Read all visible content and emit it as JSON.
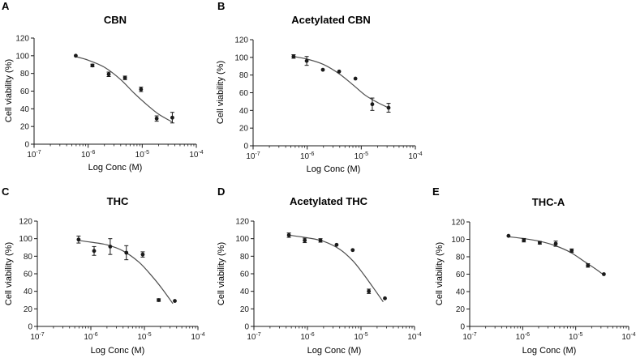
{
  "figure": {
    "colors": {
      "axis": "#1a1a1a",
      "curve": "#4d4d4d",
      "points": "#1a1a1a",
      "text": "#1a1a1a"
    }
  },
  "chart_data": [
    {
      "panel_label": "A",
      "title": "CBN",
      "type": "scatter",
      "xlabel": "Log Conc (M)",
      "ylabel": "Cell viability (%)",
      "xscale": "log",
      "xlim": [
        1e-07,
        0.0001
      ],
      "ylim": [
        0,
        120
      ],
      "x_ticklabels": [
        "10-7",
        "10-6",
        "10-5",
        "10-4"
      ],
      "y_ticklabels": [
        "0",
        "20",
        "40",
        "60",
        "80",
        "100",
        "120"
      ],
      "grid": false,
      "legend": "none",
      "points": [
        {
          "x": 5.9e-07,
          "y": 100,
          "err": 0
        },
        {
          "x": 1.2e-06,
          "y": 89,
          "err": 1.5
        },
        {
          "x": 2.4e-06,
          "y": 79,
          "err": 2.5
        },
        {
          "x": 4.8e-06,
          "y": 75,
          "err": 2
        },
        {
          "x": 9.5e-06,
          "y": 62,
          "err": 2.5
        },
        {
          "x": 1.85e-05,
          "y": 29,
          "err": 3
        },
        {
          "x": 3.6e-05,
          "y": 30,
          "err": 6
        }
      ],
      "fit_curve": [
        {
          "x": 5.9e-07,
          "y": 99
        },
        {
          "x": 1e-06,
          "y": 95
        },
        {
          "x": 2e-06,
          "y": 87
        },
        {
          "x": 4e-06,
          "y": 73
        },
        {
          "x": 7e-06,
          "y": 58
        },
        {
          "x": 1.2e-05,
          "y": 45
        },
        {
          "x": 2e-05,
          "y": 34
        },
        {
          "x": 3.6e-05,
          "y": 25
        }
      ]
    },
    {
      "panel_label": "B",
      "title": "Acetylated CBN",
      "type": "scatter",
      "xlabel": "Log Conc (M)",
      "ylabel": "Cell viability (%)",
      "xscale": "log",
      "xlim": [
        1e-07,
        0.0001
      ],
      "ylim": [
        0,
        120
      ],
      "x_ticklabels": [
        "10-7",
        "10-6",
        "10-5",
        "10-4"
      ],
      "y_ticklabels": [
        "0",
        "20",
        "40",
        "60",
        "80",
        "100",
        "120"
      ],
      "grid": false,
      "legend": "none",
      "points": [
        {
          "x": 5.6e-07,
          "y": 101,
          "err": 2
        },
        {
          "x": 9.8e-07,
          "y": 96,
          "err": 5
        },
        {
          "x": 1.95e-06,
          "y": 86,
          "err": 0
        },
        {
          "x": 3.9e-06,
          "y": 84,
          "err": 0
        },
        {
          "x": 7.8e-06,
          "y": 76,
          "err": 0
        },
        {
          "x": 1.6e-05,
          "y": 47,
          "err": 7
        },
        {
          "x": 3.2e-05,
          "y": 43,
          "err": 5
        }
      ],
      "fit_curve": [
        {
          "x": 5.6e-07,
          "y": 101
        },
        {
          "x": 1e-06,
          "y": 98
        },
        {
          "x": 2e-06,
          "y": 92
        },
        {
          "x": 4e-06,
          "y": 81
        },
        {
          "x": 7e-06,
          "y": 69
        },
        {
          "x": 1.2e-05,
          "y": 57
        },
        {
          "x": 2e-05,
          "y": 49
        },
        {
          "x": 3.2e-05,
          "y": 43
        }
      ]
    },
    {
      "panel_label": "C",
      "title": "THC",
      "type": "scatter",
      "xlabel": "Log Conc (M)",
      "ylabel": "Cell viability (%)",
      "xscale": "log",
      "xlim": [
        1e-07,
        0.0001
      ],
      "ylim": [
        0,
        120
      ],
      "x_ticklabels": [
        "10-7",
        "10-6",
        "10-5",
        "10-4"
      ],
      "y_ticklabels": [
        "0",
        "20",
        "40",
        "60",
        "80",
        "100",
        "120"
      ],
      "grid": false,
      "legend": "none",
      "points": [
        {
          "x": 5.9e-07,
          "y": 99,
          "err": 4
        },
        {
          "x": 1.15e-06,
          "y": 86,
          "err": 5
        },
        {
          "x": 2.3e-06,
          "y": 91,
          "err": 9
        },
        {
          "x": 4.6e-06,
          "y": 84,
          "err": 8
        },
        {
          "x": 9.3e-06,
          "y": 82,
          "err": 3
        },
        {
          "x": 1.85e-05,
          "y": 30,
          "err": 1.5
        },
        {
          "x": 3.7e-05,
          "y": 29,
          "err": 0
        }
      ],
      "fit_curve": [
        {
          "x": 5.9e-07,
          "y": 98
        },
        {
          "x": 1e-06,
          "y": 96
        },
        {
          "x": 2e-06,
          "y": 93
        },
        {
          "x": 4e-06,
          "y": 86
        },
        {
          "x": 8e-06,
          "y": 73
        },
        {
          "x": 1.4e-05,
          "y": 57
        },
        {
          "x": 2.2e-05,
          "y": 42
        },
        {
          "x": 3.4e-05,
          "y": 26
        }
      ]
    },
    {
      "panel_label": "D",
      "title": "Acetylated THC",
      "type": "scatter",
      "xlabel": "Log Conc (M)",
      "ylabel": "Cell viability (%)",
      "xscale": "log",
      "xlim": [
        1e-07,
        0.0001
      ],
      "ylim": [
        0,
        120
      ],
      "x_ticklabels": [
        "10-7",
        "10-6",
        "10-5",
        "10-4"
      ],
      "y_ticklabels": [
        "0",
        "20",
        "40",
        "60",
        "80",
        "100",
        "120"
      ],
      "grid": false,
      "legend": "none",
      "points": [
        {
          "x": 4.5e-07,
          "y": 104,
          "err": 2.5
        },
        {
          "x": 8.9e-07,
          "y": 98,
          "err": 2.5
        },
        {
          "x": 1.75e-06,
          "y": 98,
          "err": 2
        },
        {
          "x": 3.5e-06,
          "y": 93,
          "err": 0
        },
        {
          "x": 7e-06,
          "y": 87,
          "err": 0
        },
        {
          "x": 1.4e-05,
          "y": 40,
          "err": 2.5
        },
        {
          "x": 2.8e-05,
          "y": 32,
          "err": 0
        }
      ],
      "fit_curve": [
        {
          "x": 4.5e-07,
          "y": 104
        },
        {
          "x": 1e-06,
          "y": 101
        },
        {
          "x": 2e-06,
          "y": 97
        },
        {
          "x": 4e-06,
          "y": 88
        },
        {
          "x": 7e-06,
          "y": 75
        },
        {
          "x": 1.1e-05,
          "y": 60
        },
        {
          "x": 1.7e-05,
          "y": 44
        },
        {
          "x": 2.6e-05,
          "y": 28
        }
      ]
    },
    {
      "panel_label": "E",
      "title": "THC-A",
      "type": "scatter",
      "xlabel": "Log Conc (M)",
      "ylabel": "Cell viability (%)",
      "xscale": "log",
      "xlim": [
        1e-07,
        0.0001
      ],
      "ylim": [
        0,
        120
      ],
      "x_ticklabels": [
        "10-7",
        "10-6",
        "10-5",
        "10-4"
      ],
      "y_ticklabels": [
        "0",
        "20",
        "40",
        "60",
        "80",
        "100",
        "120"
      ],
      "grid": false,
      "legend": "none",
      "points": [
        {
          "x": 5.4e-07,
          "y": 104,
          "err": 0
        },
        {
          "x": 1.05e-06,
          "y": 99,
          "err": 2
        },
        {
          "x": 2.1e-06,
          "y": 96,
          "err": 1.5
        },
        {
          "x": 4.2e-06,
          "y": 95,
          "err": 3
        },
        {
          "x": 8.4e-06,
          "y": 87,
          "err": 2
        },
        {
          "x": 1.7e-05,
          "y": 70,
          "err": 2
        },
        {
          "x": 3.4e-05,
          "y": 60,
          "err": 0
        }
      ],
      "fit_curve": [
        {
          "x": 5.4e-07,
          "y": 103
        },
        {
          "x": 1e-06,
          "y": 101
        },
        {
          "x": 2e-06,
          "y": 98
        },
        {
          "x": 4e-06,
          "y": 93
        },
        {
          "x": 8e-06,
          "y": 85
        },
        {
          "x": 1.5e-05,
          "y": 74
        },
        {
          "x": 2.5e-05,
          "y": 65
        },
        {
          "x": 3.4e-05,
          "y": 59
        }
      ]
    }
  ]
}
